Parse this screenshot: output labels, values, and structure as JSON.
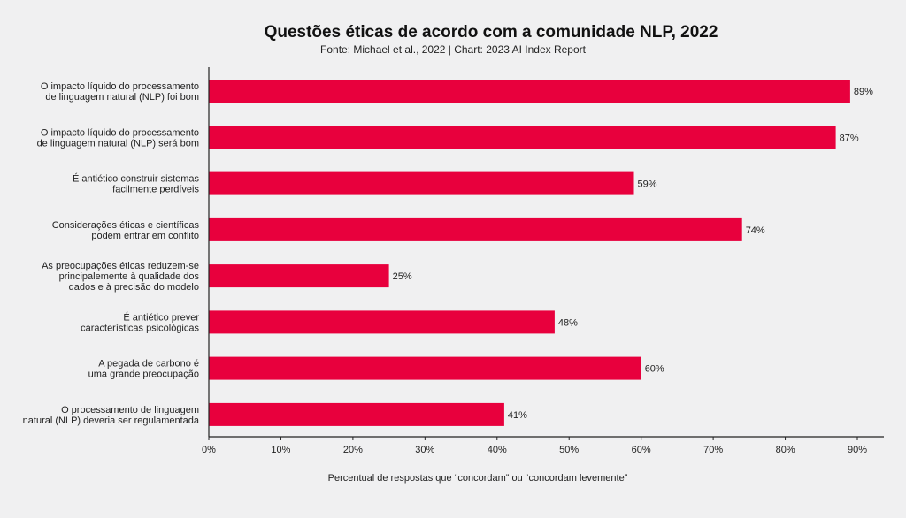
{
  "header": {
    "title": "Questões éticas de acordo com a comunidade NLP, 2022",
    "subtitle": "Fonte: Michael et al., 2022 | Chart: 2023 AI Index Report"
  },
  "chart_data": {
    "type": "bar",
    "orientation": "horizontal",
    "title": "Questões éticas de acordo com a comunidade NLP, 2022",
    "subtitle": "Fonte: Michael et al., 2022 | Chart: 2023 AI Index Report",
    "xlabel": "Percentual de respostas que “concordam” ou “concordam levemente”",
    "ylabel": "",
    "xlim": [
      0,
      94
    ],
    "xticks": [
      0,
      10,
      20,
      30,
      40,
      50,
      60,
      70,
      80,
      90
    ],
    "xtick_labels": [
      "0%",
      "10%",
      "20%",
      "30%",
      "40%",
      "50%",
      "60%",
      "70%",
      "80%",
      "90%"
    ],
    "bar_color": "#e8003d",
    "grid": false,
    "categories": [
      [
        "O impacto líquido do processamento",
        "de linguagem natural (NLP) foi bom"
      ],
      [
        "O impacto líquido do processamento",
        "de linguagem natural (NLP) será bom"
      ],
      [
        "É antiético construir sistemas",
        "facilmente perdíveis"
      ],
      [
        "Considerações éticas e científicas",
        "podem entrar em conflito"
      ],
      [
        "As preocupações éticas reduzem-se",
        "principalemente à qualidade dos",
        "dados e à precisão do modelo"
      ],
      [
        "É antiético prever",
        "características psicológicas"
      ],
      [
        "A pegada de carbono é",
        "uma grande preocupação"
      ],
      [
        "O processamento de linguagem",
        "natural (NLP) deveria ser regulamentada"
      ]
    ],
    "values": [
      89,
      87,
      59,
      74,
      25,
      48,
      60,
      41
    ],
    "data_labels": [
      "89%",
      "87%",
      "59%",
      "74%",
      "25%",
      "48%",
      "60%",
      "41%"
    ]
  }
}
